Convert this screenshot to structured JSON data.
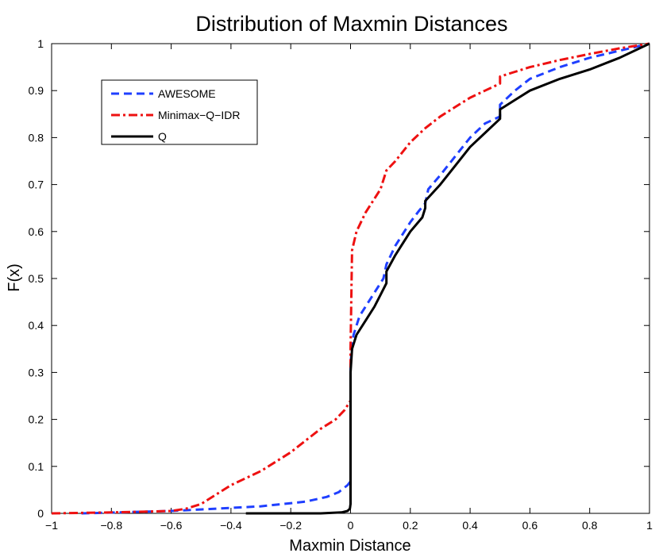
{
  "chart_data": {
    "type": "line",
    "title": "Distribution of Maxmin Distances",
    "xlabel": "Maxmin Distance",
    "ylabel": "F(x)",
    "xlim": [
      -1,
      1
    ],
    "ylim": [
      0,
      1
    ],
    "x_ticks": [
      -1,
      -0.8,
      -0.6,
      -0.4,
      -0.2,
      0,
      0.2,
      0.4,
      0.6,
      0.8,
      1
    ],
    "x_tick_labels": [
      "−1",
      "−0.8",
      "−0.6",
      "−0.4",
      "−0.2",
      "0",
      "0.2",
      "0.4",
      "0.6",
      "0.8",
      "1"
    ],
    "y_ticks": [
      0,
      0.1,
      0.2,
      0.3,
      0.4,
      0.5,
      0.6,
      0.7,
      0.8,
      0.9,
      1
    ],
    "y_tick_labels": [
      "0",
      "0.1",
      "0.2",
      "0.3",
      "0.4",
      "0.5",
      "0.6",
      "0.7",
      "0.8",
      "0.9",
      "1"
    ],
    "grid": false,
    "legend_position": "top-left",
    "series": [
      {
        "name": "AWESOME",
        "color": "#1f3fff",
        "style": "dashed",
        "x": [
          -0.9,
          -0.6,
          -0.45,
          -0.3,
          -0.15,
          -0.08,
          -0.04,
          -0.01,
          0,
          0,
          0.01,
          0.03,
          0.06,
          0.09,
          0.11,
          0.12,
          0.15,
          0.18,
          0.2,
          0.23,
          0.25,
          0.26,
          0.3,
          0.35,
          0.4,
          0.45,
          0.5,
          0.5,
          0.55,
          0.6,
          0.7,
          0.8,
          0.9,
          1.0
        ],
        "values": [
          0.0,
          0.005,
          0.01,
          0.015,
          0.025,
          0.035,
          0.045,
          0.06,
          0.068,
          0.32,
          0.38,
          0.42,
          0.45,
          0.48,
          0.5,
          0.53,
          0.57,
          0.6,
          0.62,
          0.645,
          0.66,
          0.69,
          0.72,
          0.76,
          0.8,
          0.83,
          0.845,
          0.87,
          0.9,
          0.925,
          0.95,
          0.97,
          0.985,
          1.0
        ]
      },
      {
        "name": "Minimax−Q−IDR",
        "color": "#ee1111",
        "style": "dashdot",
        "x": [
          -1.0,
          -0.8,
          -0.6,
          -0.55,
          -0.5,
          -0.45,
          -0.4,
          -0.35,
          -0.3,
          -0.25,
          -0.2,
          -0.15,
          -0.1,
          -0.05,
          -0.02,
          0,
          0,
          0.005,
          0.02,
          0.05,
          0.1,
          0.12,
          0.15,
          0.2,
          0.25,
          0.3,
          0.35,
          0.4,
          0.45,
          0.5,
          0.5,
          0.55,
          0.6,
          0.7,
          0.8,
          0.9,
          1.0
        ],
        "values": [
          0.0,
          0.002,
          0.005,
          0.01,
          0.02,
          0.04,
          0.06,
          0.075,
          0.09,
          0.11,
          0.13,
          0.155,
          0.18,
          0.2,
          0.22,
          0.24,
          0.35,
          0.56,
          0.6,
          0.64,
          0.69,
          0.73,
          0.75,
          0.79,
          0.82,
          0.845,
          0.865,
          0.885,
          0.9,
          0.915,
          0.93,
          0.94,
          0.95,
          0.965,
          0.978,
          0.99,
          1.0
        ]
      },
      {
        "name": "Q",
        "color": "#000000",
        "style": "solid",
        "x": [
          -0.35,
          -0.1,
          -0.03,
          -0.01,
          -0.002,
          0,
          0,
          0.005,
          0.02,
          0.05,
          0.08,
          0.1,
          0.12,
          0.12,
          0.15,
          0.2,
          0.24,
          0.25,
          0.25,
          0.3,
          0.35,
          0.4,
          0.45,
          0.5,
          0.5,
          0.55,
          0.6,
          0.7,
          0.8,
          0.9,
          1.0
        ],
        "values": [
          0.0,
          0.0,
          0.002,
          0.005,
          0.01,
          0.02,
          0.3,
          0.35,
          0.38,
          0.41,
          0.44,
          0.465,
          0.49,
          0.515,
          0.55,
          0.6,
          0.63,
          0.65,
          0.665,
          0.7,
          0.74,
          0.78,
          0.81,
          0.84,
          0.86,
          0.88,
          0.9,
          0.925,
          0.945,
          0.97,
          1.0
        ]
      }
    ]
  }
}
